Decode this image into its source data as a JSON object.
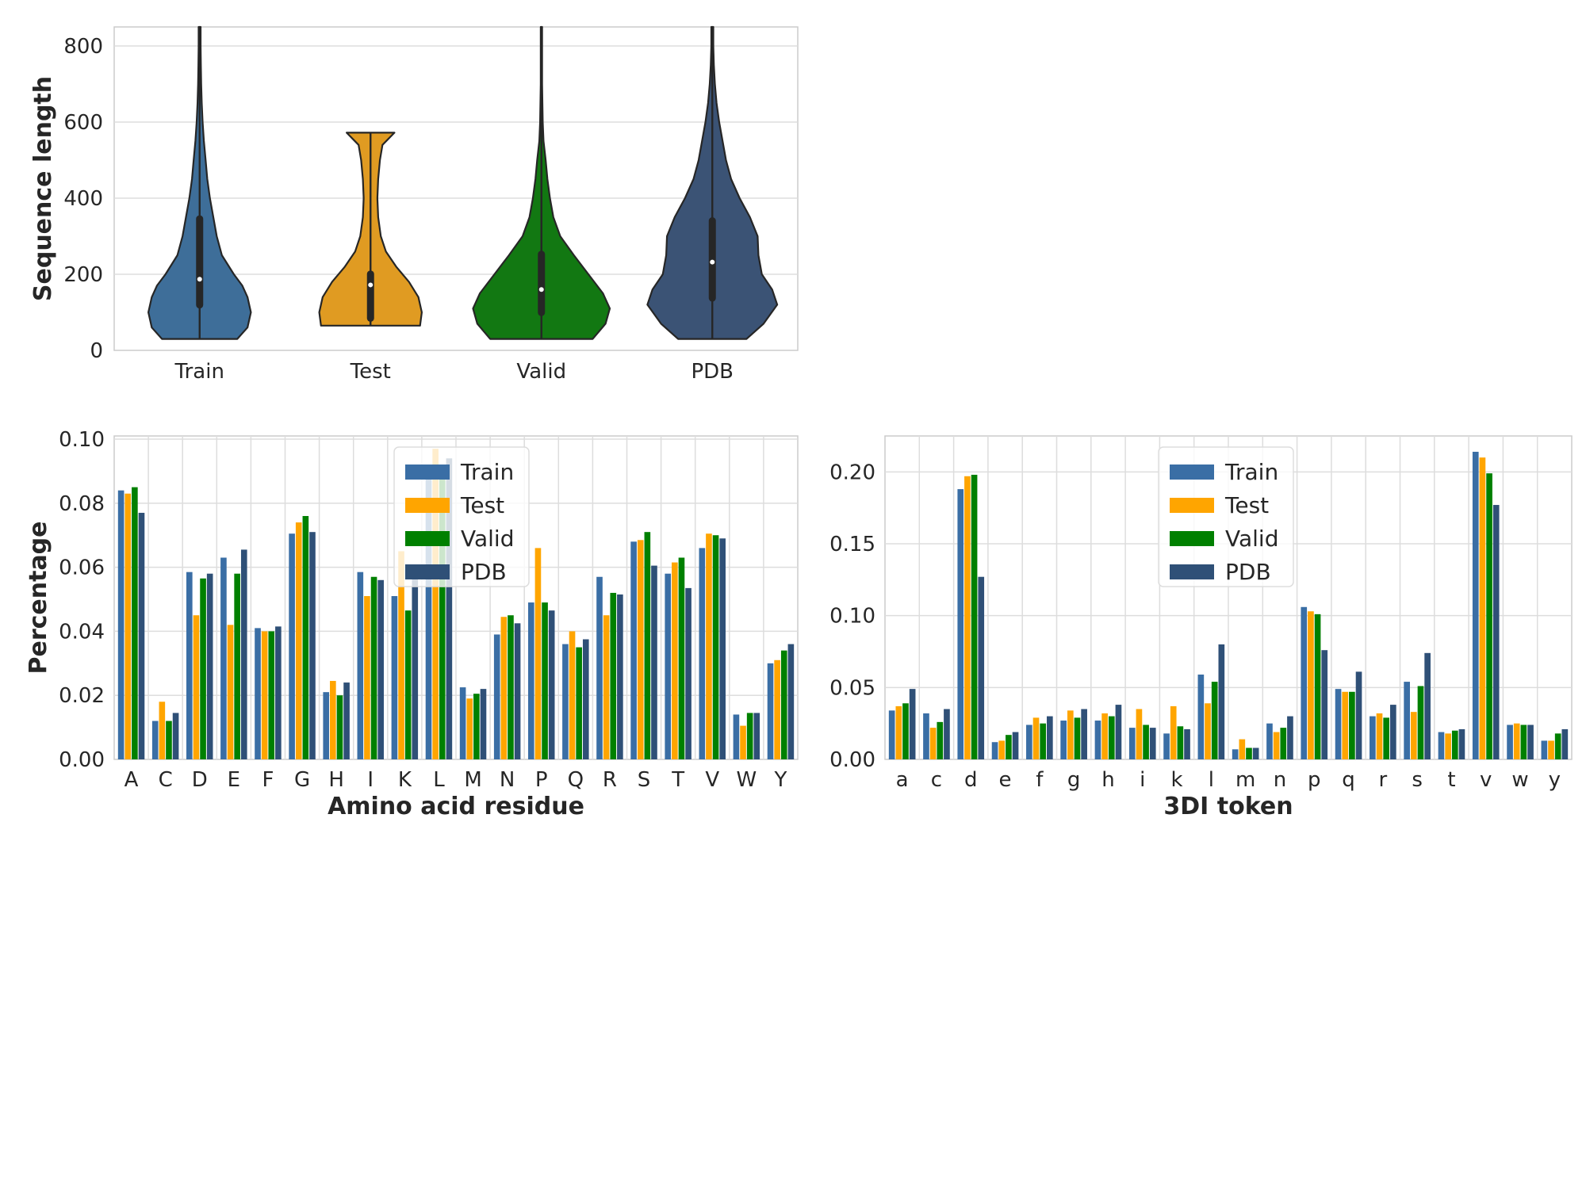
{
  "chart_data": [
    {
      "type": "violin",
      "ylabel": "Sequence length",
      "ylim": [
        0,
        850
      ],
      "yticks": [
        0,
        200,
        400,
        600,
        800
      ],
      "grid": true,
      "categories": [
        "Train",
        "Test",
        "Valid",
        "PDB"
      ],
      "colors": [
        "#3e6e99",
        "#e09b22",
        "#127812",
        "#3b5375"
      ],
      "violins": [
        {
          "name": "Train",
          "min": 30,
          "max": 850,
          "q1": 110,
          "median": 187,
          "q3": 355,
          "profile": [
            [
              30,
              0.44
            ],
            [
              60,
              0.56
            ],
            [
              100,
              0.6
            ],
            [
              140,
              0.56
            ],
            [
              170,
              0.5
            ],
            [
              200,
              0.4
            ],
            [
              250,
              0.26
            ],
            [
              300,
              0.2
            ],
            [
              350,
              0.16
            ],
            [
              400,
              0.12
            ],
            [
              450,
              0.09
            ],
            [
              500,
              0.07
            ],
            [
              550,
              0.05
            ],
            [
              600,
              0.035
            ],
            [
              650,
              0.025
            ],
            [
              700,
              0.018
            ],
            [
              750,
              0.014
            ],
            [
              800,
              0.012
            ],
            [
              850,
              0.012
            ]
          ]
        },
        {
          "name": "Test",
          "min": 65,
          "max": 572,
          "q1": 75,
          "median": 172,
          "q3": 210,
          "profile": [
            [
              65,
              0.58
            ],
            [
              100,
              0.6
            ],
            [
              140,
              0.56
            ],
            [
              180,
              0.45
            ],
            [
              220,
              0.3
            ],
            [
              260,
              0.18
            ],
            [
              300,
              0.12
            ],
            [
              350,
              0.09
            ],
            [
              400,
              0.08
            ],
            [
              450,
              0.09
            ],
            [
              500,
              0.11
            ],
            [
              540,
              0.14
            ],
            [
              572,
              0.28
            ]
          ]
        },
        {
          "name": "Valid",
          "min": 30,
          "max": 850,
          "q1": 90,
          "median": 160,
          "q3": 262,
          "profile": [
            [
              30,
              0.6
            ],
            [
              70,
              0.75
            ],
            [
              110,
              0.8
            ],
            [
              150,
              0.72
            ],
            [
              200,
              0.55
            ],
            [
              250,
              0.38
            ],
            [
              300,
              0.22
            ],
            [
              350,
              0.14
            ],
            [
              400,
              0.1
            ],
            [
              450,
              0.07
            ],
            [
              500,
              0.05
            ],
            [
              550,
              0.025
            ],
            [
              600,
              0.015
            ],
            [
              700,
              0.008
            ],
            [
              850,
              0.008
            ]
          ]
        },
        {
          "name": "PDB",
          "min": 30,
          "max": 850,
          "q1": 128,
          "median": 232,
          "q3": 350,
          "profile": [
            [
              30,
              0.4
            ],
            [
              70,
              0.6
            ],
            [
              120,
              0.76
            ],
            [
              160,
              0.7
            ],
            [
              200,
              0.58
            ],
            [
              250,
              0.54
            ],
            [
              300,
              0.53
            ],
            [
              350,
              0.44
            ],
            [
              400,
              0.32
            ],
            [
              450,
              0.22
            ],
            [
              500,
              0.16
            ],
            [
              550,
              0.12
            ],
            [
              600,
              0.08
            ],
            [
              650,
              0.05
            ],
            [
              700,
              0.03
            ],
            [
              750,
              0.018
            ],
            [
              800,
              0.012
            ],
            [
              850,
              0.012
            ]
          ]
        }
      ]
    },
    {
      "type": "bar",
      "xlabel": "Amino acid residue",
      "ylabel": "Percentage",
      "ylim": [
        0,
        0.101
      ],
      "yticks": [
        "0.00",
        "0.02",
        "0.04",
        "0.06",
        "0.08",
        "0.10"
      ],
      "grid": true,
      "legend": "top-center",
      "categories": [
        "A",
        "C",
        "D",
        "E",
        "F",
        "G",
        "H",
        "I",
        "K",
        "L",
        "M",
        "N",
        "P",
        "Q",
        "R",
        "S",
        "T",
        "V",
        "W",
        "Y"
      ],
      "series": [
        {
          "name": "Train",
          "color": "#3a6ea5",
          "values": [
            0.084,
            0.012,
            0.0585,
            0.063,
            0.041,
            0.0705,
            0.021,
            0.0585,
            0.051,
            0.092,
            0.0225,
            0.039,
            0.049,
            0.036,
            0.057,
            0.068,
            0.058,
            0.066,
            0.014,
            0.03
          ]
        },
        {
          "name": "Test",
          "color": "#ffa500",
          "values": [
            0.083,
            0.018,
            0.045,
            0.042,
            0.04,
            0.074,
            0.0245,
            0.051,
            0.065,
            0.097,
            0.019,
            0.0445,
            0.066,
            0.04,
            0.045,
            0.0685,
            0.0615,
            0.0705,
            0.0105,
            0.031
          ]
        },
        {
          "name": "Valid",
          "color": "#008000",
          "values": [
            0.085,
            0.012,
            0.0565,
            0.058,
            0.04,
            0.076,
            0.02,
            0.057,
            0.0465,
            0.09,
            0.0205,
            0.045,
            0.049,
            0.035,
            0.052,
            0.071,
            0.063,
            0.07,
            0.0145,
            0.034
          ]
        },
        {
          "name": "PDB",
          "color": "#2f5077",
          "values": [
            0.077,
            0.0145,
            0.058,
            0.0655,
            0.0415,
            0.071,
            0.024,
            0.056,
            0.06,
            0.094,
            0.022,
            0.0425,
            0.0465,
            0.0375,
            0.0515,
            0.0605,
            0.0535,
            0.069,
            0.0145,
            0.036
          ]
        }
      ]
    },
    {
      "type": "bar",
      "xlabel": "3DI token",
      "ylabel": "",
      "ylim": [
        0,
        0.225
      ],
      "yticks": [
        "0.00",
        "0.05",
        "0.10",
        "0.15",
        "0.20"
      ],
      "grid": true,
      "legend": "top-center",
      "categories": [
        "a",
        "c",
        "d",
        "e",
        "f",
        "g",
        "h",
        "i",
        "k",
        "l",
        "m",
        "n",
        "p",
        "q",
        "r",
        "s",
        "t",
        "v",
        "w",
        "y"
      ],
      "series": [
        {
          "name": "Train",
          "color": "#3a6ea5",
          "values": [
            0.034,
            0.032,
            0.188,
            0.012,
            0.024,
            0.027,
            0.027,
            0.022,
            0.018,
            0.059,
            0.007,
            0.025,
            0.106,
            0.049,
            0.03,
            0.054,
            0.019,
            0.214,
            0.024,
            0.013
          ]
        },
        {
          "name": "Test",
          "color": "#ffa500",
          "values": [
            0.037,
            0.022,
            0.197,
            0.013,
            0.029,
            0.034,
            0.032,
            0.035,
            0.037,
            0.039,
            0.014,
            0.019,
            0.103,
            0.047,
            0.032,
            0.033,
            0.018,
            0.21,
            0.025,
            0.013
          ]
        },
        {
          "name": "Valid",
          "color": "#008000",
          "values": [
            0.039,
            0.026,
            0.198,
            0.017,
            0.025,
            0.029,
            0.03,
            0.024,
            0.023,
            0.054,
            0.008,
            0.022,
            0.101,
            0.047,
            0.029,
            0.051,
            0.02,
            0.199,
            0.024,
            0.018
          ]
        },
        {
          "name": "PDB",
          "color": "#2f5077",
          "values": [
            0.049,
            0.035,
            0.127,
            0.019,
            0.03,
            0.035,
            0.038,
            0.022,
            0.021,
            0.08,
            0.008,
            0.03,
            0.076,
            0.061,
            0.038,
            0.074,
            0.021,
            0.177,
            0.024,
            0.021
          ]
        }
      ]
    }
  ]
}
